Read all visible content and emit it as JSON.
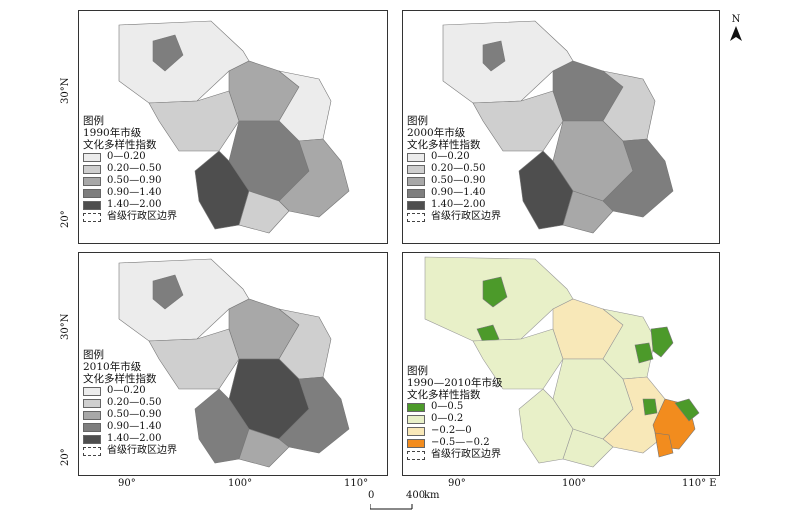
{
  "compass": {
    "label": "N"
  },
  "panels": [
    {
      "id": "p1990",
      "legend_title_lines": [
        "图例",
        "1990年市级",
        "文化多样性指数"
      ]
    },
    {
      "id": "p2000",
      "legend_title_lines": [
        "图例",
        "2000年市级",
        "文化多样性指数"
      ]
    },
    {
      "id": "p2010",
      "legend_title_lines": [
        "图例",
        "2010年市级",
        "文化多样性指数"
      ]
    },
    {
      "id": "pchange",
      "legend_title_lines": [
        "图例",
        "1990—2010年市级",
        "文化多样性指数"
      ]
    }
  ],
  "legend_index": {
    "classes": [
      "0—0.20",
      "0.20—0.50",
      "0.50—0.90",
      "0.90—1.40",
      "1.40—2.00"
    ],
    "colors": [
      "#ececec",
      "#cfcfcf",
      "#a8a8a8",
      "#7e7e7e",
      "#4e4e4e"
    ]
  },
  "legend_change": {
    "classes": [
      "0—0.5",
      "0—0.2",
      "−0.2—0",
      "−0.5—−0.2"
    ],
    "colors": [
      "#4c9a2a",
      "#e8f0c8",
      "#f8e8b8",
      "#f28c1e"
    ]
  },
  "boundary_label": "省级行政区边界",
  "axes": {
    "lat_labels": [
      "30°N",
      "20°"
    ],
    "lon_labels": [
      "90°",
      "100°",
      "110°",
      "110° E"
    ]
  },
  "scale": {
    "left": "0",
    "right": "400",
    "unit": "km"
  }
}
